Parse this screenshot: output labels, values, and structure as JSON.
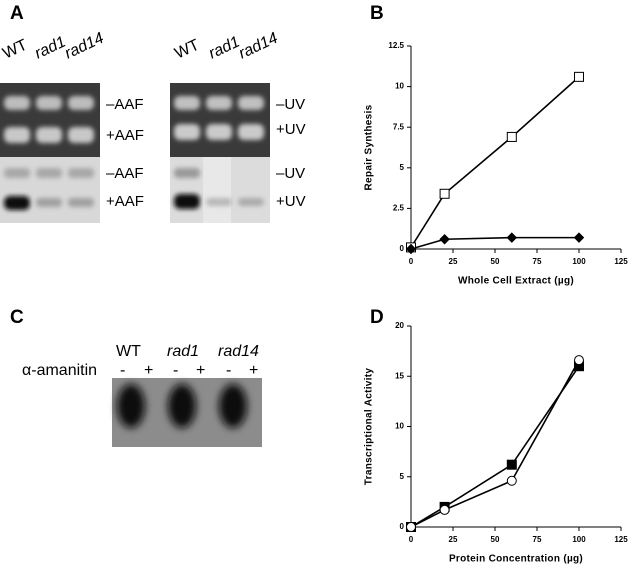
{
  "panels": {
    "A": {
      "label": "A",
      "gels": [
        {
          "lanes": [
            "WT",
            "rad1",
            "rad14"
          ],
          "rows": [
            "–AAF",
            "+AAF",
            "–AAF",
            "+AAF"
          ]
        },
        {
          "lanes": [
            "WT",
            "rad1",
            "rad14"
          ],
          "rows": [
            "–UV",
            "+UV",
            "–UV",
            "+UV"
          ]
        }
      ]
    },
    "C": {
      "label": "C",
      "lanes": [
        "WT",
        "rad1",
        "rad14"
      ],
      "treatment": "α-amanitin",
      "signs": [
        "-",
        "+",
        "-",
        "+",
        "-",
        "+"
      ]
    }
  },
  "chart_data": [
    {
      "type": "line",
      "panel_label": "B",
      "x_label": "Whole Cell Extract (µg)",
      "y_label": "Repair  Synthesis",
      "x": [
        0,
        20,
        60,
        100
      ],
      "series": [
        {
          "color": "#000000",
          "marker": "square-open",
          "values": [
            0.1,
            3.4,
            6.9,
            10.6
          ]
        },
        {
          "color": "#000000",
          "marker": "diamond-filled",
          "values": [
            0,
            0.6,
            0.7,
            0.7
          ]
        }
      ],
      "xlim": [
        0,
        125
      ],
      "xticks": [
        0,
        25,
        50,
        75,
        100,
        125
      ],
      "ylim": [
        0,
        12.5
      ],
      "yticks": [
        0,
        2.5,
        5,
        7.5,
        10,
        12.5
      ],
      "grid": false
    },
    {
      "type": "line",
      "panel_label": "D",
      "x_label": "Protein  Concentration (µg)",
      "y_label": "Transcriptional Activity",
      "x": [
        0,
        20,
        60,
        100
      ],
      "series": [
        {
          "color": "#000000",
          "marker": "square-filled",
          "values": [
            0,
            2,
            6.2,
            16
          ]
        },
        {
          "color": "#000000",
          "marker": "circle-open",
          "values": [
            0,
            1.7,
            4.6,
            16.6
          ]
        }
      ],
      "xlim": [
        0,
        125
      ],
      "xticks": [
        0,
        25,
        50,
        75,
        100,
        125
      ],
      "ylim": [
        0,
        20
      ],
      "yticks": [
        0,
        5,
        10,
        15,
        20
      ],
      "grid": false
    }
  ]
}
